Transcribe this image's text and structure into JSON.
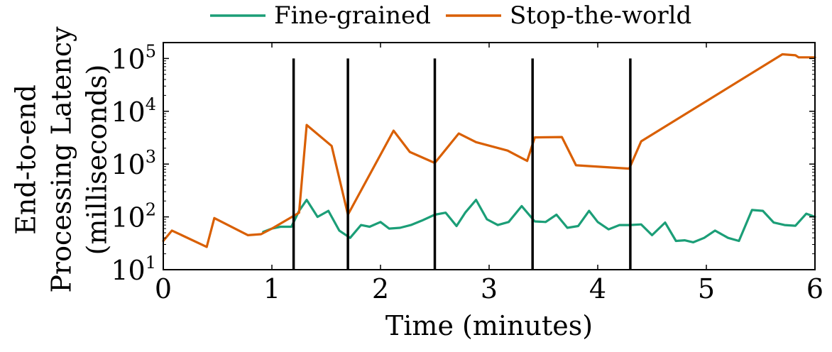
{
  "chart_data": {
    "type": "line",
    "xlabel": "Time (minutes)",
    "ylabel_lines": [
      "End-to-end",
      "Processing Latency",
      "(milliseconds)"
    ],
    "xlim": [
      0,
      6
    ],
    "ylim": [
      10,
      200000
    ],
    "yscale": "log",
    "x_ticks": [
      0,
      1,
      2,
      3,
      4,
      5,
      6
    ],
    "x_tick_labels": [
      "0",
      "1",
      "2",
      "3",
      "4",
      "5",
      "6"
    ],
    "y_ticks": [
      10,
      100,
      1000,
      10000,
      100000
    ],
    "y_tick_labels": [
      {
        "base": "10",
        "exp": "1"
      },
      {
        "base": "10",
        "exp": "2"
      },
      {
        "base": "10",
        "exp": "3"
      },
      {
        "base": "10",
        "exp": "4"
      },
      {
        "base": "10",
        "exp": "5"
      }
    ],
    "grid": false,
    "legend_position": "top-center",
    "vertical_markers": [
      1.2,
      1.7,
      2.5,
      3.4,
      4.3
    ],
    "marker_color": "#000000",
    "series": [
      {
        "name": "Fine-grained",
        "color": "#1b9e77",
        "x": [
          0.92,
          1.0,
          1.08,
          1.18,
          1.25,
          1.32,
          1.42,
          1.52,
          1.62,
          1.72,
          1.82,
          1.9,
          2.0,
          2.08,
          2.18,
          2.28,
          2.38,
          2.5,
          2.6,
          2.7,
          2.78,
          2.88,
          2.98,
          3.08,
          3.18,
          3.3,
          3.42,
          3.52,
          3.62,
          3.72,
          3.82,
          3.92,
          4.0,
          4.1,
          4.2,
          4.3,
          4.4,
          4.5,
          4.62,
          4.72,
          4.8,
          4.88,
          4.98,
          5.08,
          5.2,
          5.3,
          5.42,
          5.52,
          5.62,
          5.72,
          5.82,
          5.92,
          6.0
        ],
        "y": [
          52,
          60,
          65,
          65,
          130,
          210,
          100,
          130,
          55,
          40,
          70,
          65,
          80,
          60,
          62,
          70,
          85,
          110,
          120,
          67,
          120,
          210,
          90,
          70,
          80,
          160,
          82,
          80,
          110,
          62,
          67,
          130,
          80,
          58,
          70,
          70,
          72,
          45,
          78,
          35,
          36,
          33,
          40,
          55,
          40,
          35,
          135,
          130,
          78,
          70,
          68,
          115,
          100
        ]
      },
      {
        "name": "Stop-the-world",
        "color": "#d95f02",
        "x": [
          0.0,
          0.08,
          0.4,
          0.47,
          0.78,
          0.9,
          1.0,
          1.25,
          1.32,
          1.55,
          1.7,
          2.12,
          2.27,
          2.5,
          2.72,
          2.88,
          3.17,
          3.3,
          3.35,
          3.42,
          3.67,
          3.8,
          4.29,
          4.4,
          5.7,
          5.82,
          5.85,
          6.0
        ],
        "y": [
          35,
          55,
          27,
          95,
          45,
          47,
          60,
          120,
          5500,
          2200,
          110,
          4300,
          1700,
          1050,
          3800,
          2600,
          1800,
          1300,
          1150,
          3200,
          3250,
          950,
          820,
          2700,
          120000,
          115000,
          105000,
          105000
        ]
      }
    ]
  }
}
